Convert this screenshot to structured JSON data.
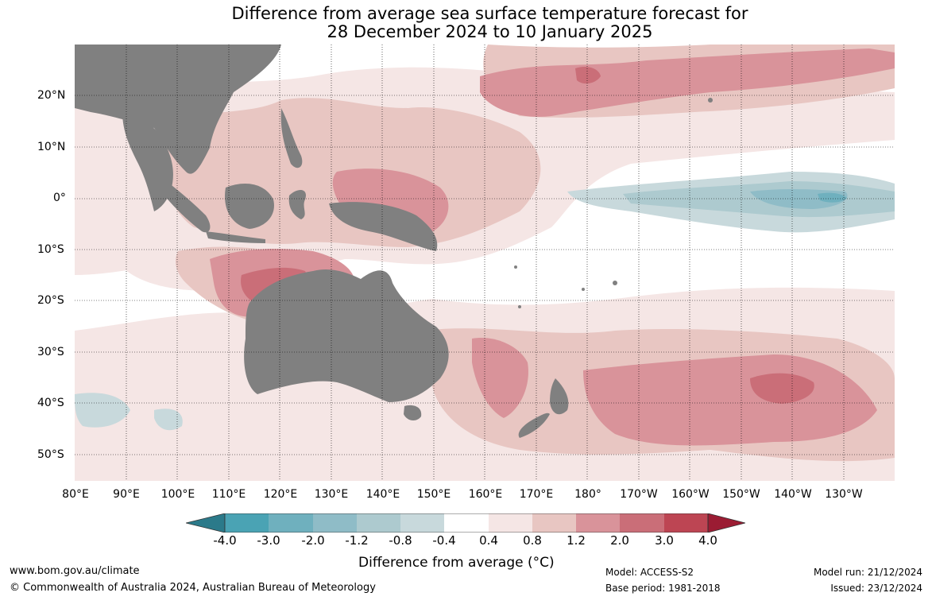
{
  "title_line1": "Difference from average sea surface temperature forecast for",
  "title_line2": "28 December 2024 to 10 January 2025",
  "lat_labels": [
    "20°N",
    "10°N",
    "0°",
    "10°S",
    "20°S",
    "30°S",
    "40°S",
    "50°S"
  ],
  "lon_labels": [
    "80°E",
    "90°E",
    "100°E",
    "110°E",
    "120°E",
    "130°E",
    "140°E",
    "150°E",
    "160°E",
    "170°E",
    "180°",
    "170°W",
    "160°W",
    "150°W",
    "140°W",
    "130°W"
  ],
  "colorbar": {
    "ticks": [
      "-4.0",
      "-3.0",
      "-2.0",
      "-1.2",
      "-0.8",
      "-0.4",
      "0.4",
      "0.8",
      "1.2",
      "2.0",
      "3.0",
      "4.0"
    ],
    "label": "Difference from average (°C)",
    "colors": [
      "#2b7a8a",
      "#4aa3b4",
      "#6fb0be",
      "#8fbcc7",
      "#adcacf",
      "#c8d9dc",
      "#ffffff",
      "#f5e6e5",
      "#e8c6c2",
      "#d9939a",
      "#ca6e78",
      "#bd4553",
      "#9b1c33"
    ]
  },
  "footer": {
    "url": "www.bom.gov.au/climate",
    "copyright": "© Commonwealth of Australia 2024, Australian Bureau of Meteorology",
    "model": "Model: ACCESS-S2",
    "base_period": "Base period: 1981-2018",
    "model_run": "Model run: 21/12/2024",
    "issued": "Issued: 23/12/2024"
  },
  "land_color": "#808080"
}
